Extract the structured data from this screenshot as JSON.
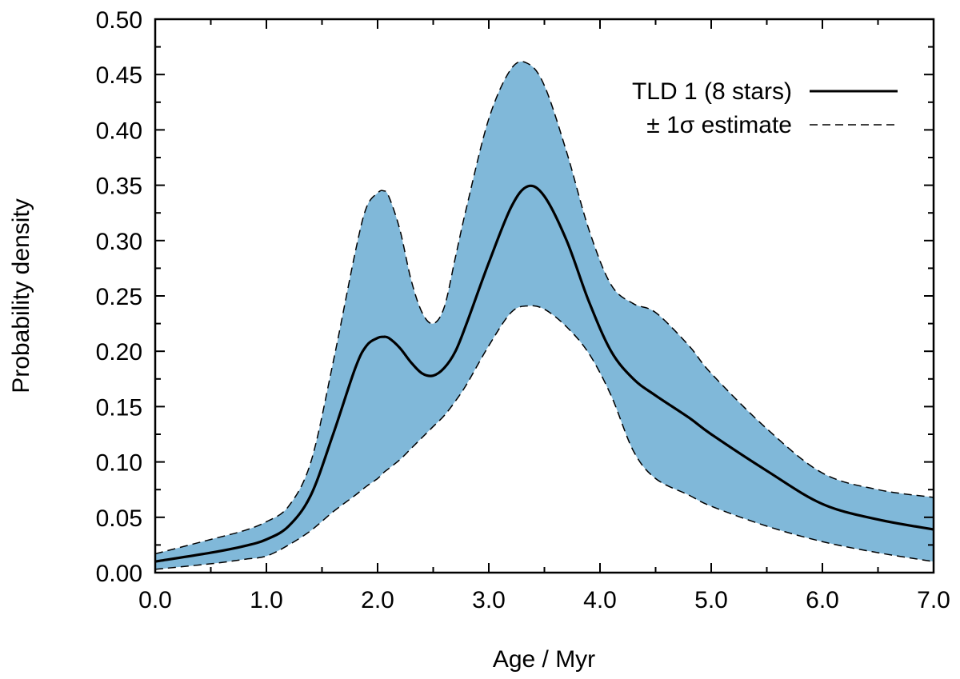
{
  "chart_data": {
    "type": "line",
    "title": "",
    "xlabel": "Age / Myr",
    "ylabel": "Probability density",
    "xlim": [
      0,
      7
    ],
    "ylim": [
      0,
      0.5
    ],
    "x_ticks": [
      "0.0",
      "1.0",
      "2.0",
      "3.0",
      "4.0",
      "5.0",
      "6.0",
      "7.0"
    ],
    "y_ticks": [
      "0.00",
      "0.05",
      "0.10",
      "0.15",
      "0.20",
      "0.25",
      "0.30",
      "0.35",
      "0.40",
      "0.45",
      "0.50"
    ],
    "grid": false,
    "legend_position": "top-right",
    "band_color": "#80b8d9",
    "x": [
      0.0,
      0.5,
      0.8,
      1.0,
      1.2,
      1.4,
      1.6,
      1.8,
      1.9,
      2.0,
      2.05,
      2.1,
      2.2,
      2.3,
      2.4,
      2.5,
      2.6,
      2.7,
      2.8,
      3.0,
      3.2,
      3.35,
      3.5,
      3.7,
      3.9,
      4.1,
      4.3,
      4.5,
      4.8,
      5.0,
      5.5,
      6.0,
      6.5,
      7.0
    ],
    "series": [
      {
        "name": "TLD 1 (8 stars)",
        "style": "solid",
        "values": [
          0.01,
          0.018,
          0.024,
          0.03,
          0.042,
          0.07,
          0.125,
          0.185,
          0.205,
          0.212,
          0.213,
          0.212,
          0.203,
          0.19,
          0.18,
          0.178,
          0.185,
          0.2,
          0.225,
          0.28,
          0.33,
          0.349,
          0.34,
          0.3,
          0.245,
          0.2,
          0.175,
          0.16,
          0.14,
          0.125,
          0.092,
          0.062,
          0.048,
          0.039
        ]
      },
      {
        "name": "± 1σ estimate",
        "style": "dashed",
        "role": "band",
        "upper": [
          0.017,
          0.03,
          0.038,
          0.046,
          0.06,
          0.1,
          0.19,
          0.29,
          0.33,
          0.343,
          0.345,
          0.34,
          0.31,
          0.265,
          0.235,
          0.225,
          0.24,
          0.285,
          0.33,
          0.41,
          0.455,
          0.46,
          0.44,
          0.38,
          0.31,
          0.26,
          0.243,
          0.235,
          0.205,
          0.18,
          0.13,
          0.09,
          0.075,
          0.068
        ],
        "lower": [
          0.003,
          0.008,
          0.012,
          0.015,
          0.025,
          0.038,
          0.055,
          0.07,
          0.078,
          0.085,
          0.09,
          0.094,
          0.102,
          0.112,
          0.122,
          0.132,
          0.142,
          0.155,
          0.17,
          0.205,
          0.235,
          0.241,
          0.238,
          0.222,
          0.198,
          0.16,
          0.11,
          0.085,
          0.07,
          0.06,
          0.042,
          0.028,
          0.018,
          0.01
        ]
      }
    ]
  }
}
